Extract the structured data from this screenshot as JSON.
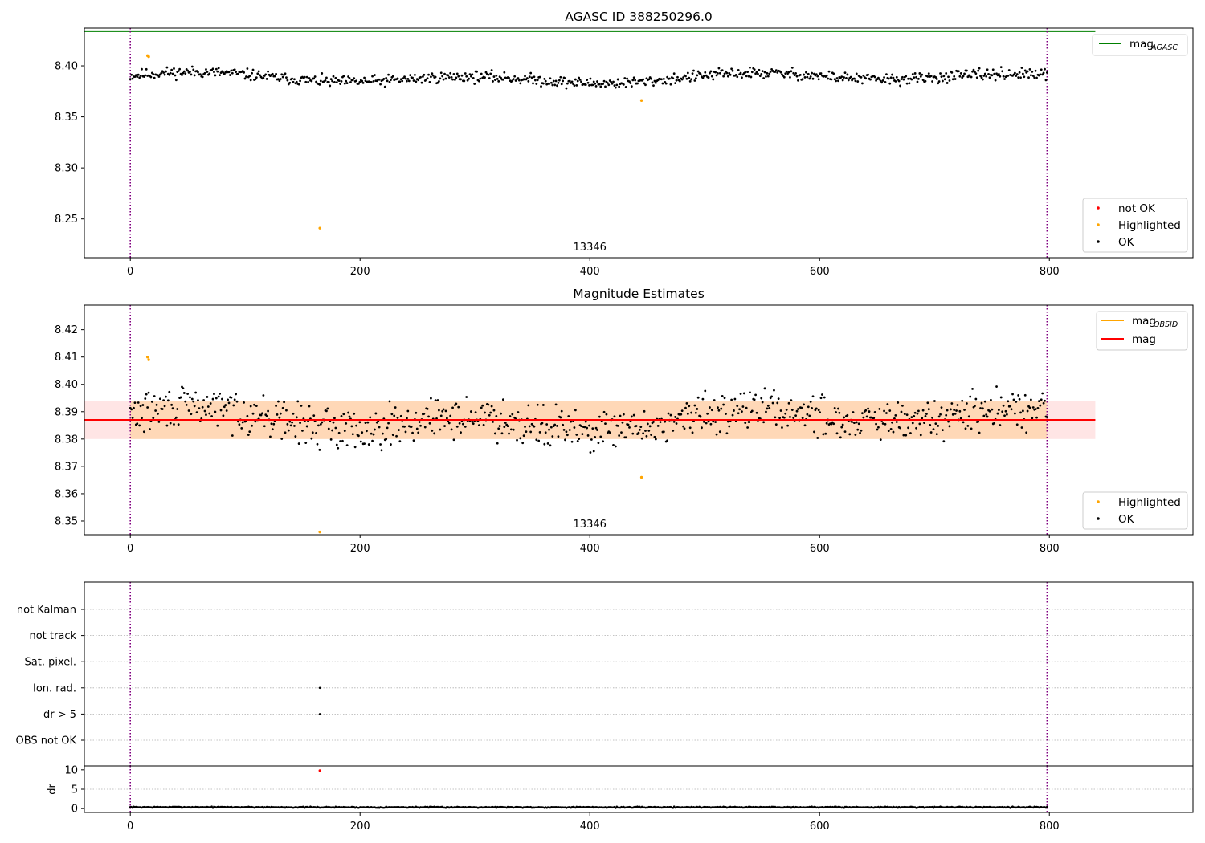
{
  "chart_data": [
    {
      "type": "scatter",
      "title": "AGASC ID 388250296.0",
      "xlim": [
        -40,
        925
      ],
      "ylim": [
        8.212,
        8.437
      ],
      "xticks": [
        0,
        200,
        400,
        600,
        800
      ],
      "yticks": [
        8.25,
        8.3,
        8.35,
        8.4
      ],
      "ytick_labels": [
        "8.25",
        "8.30",
        "8.35",
        "8.40"
      ],
      "obsid_label": "13346",
      "obsid_label_x": 400,
      "vlines": [
        0,
        798
      ],
      "hline": {
        "name": "mag",
        "subscript": "AGASC",
        "value": 8.434,
        "xmax": 840,
        "color": "#008000"
      },
      "scatter_legend": {
        "placement": "lower-right",
        "entries": [
          {
            "label": "not OK",
            "color": "#ff0000"
          },
          {
            "label": "Highlighted",
            "color": "#ffa500"
          },
          {
            "label": "OK",
            "color": "#000000"
          }
        ]
      },
      "line_legend": {
        "placement": "upper-right"
      },
      "series": [
        {
          "name": "OK",
          "color": "#000000",
          "n": 800,
          "x_max": 798,
          "base": 8.388,
          "noise": 0.0045
        },
        {
          "name": "Highlighted",
          "color": "#ffa500",
          "points": [
            [
              15,
              8.41
            ],
            [
              16,
              8.409
            ],
            [
              165,
              8.241
            ],
            [
              445,
              8.366
            ]
          ]
        },
        {
          "name": "not OK",
          "color": "#ff0000",
          "points": []
        }
      ]
    },
    {
      "type": "scatter",
      "title": "Magnitude Estimates",
      "xlim": [
        -40,
        925
      ],
      "ylim": [
        8.345,
        8.429
      ],
      "xticks": [
        0,
        200,
        400,
        600,
        800
      ],
      "yticks": [
        8.35,
        8.36,
        8.37,
        8.38,
        8.39,
        8.4,
        8.41,
        8.42
      ],
      "ytick_labels": [
        "8.35",
        "8.36",
        "8.37",
        "8.38",
        "8.39",
        "8.40",
        "8.41",
        "8.42"
      ],
      "obsid_label": "13346",
      "obsid_label_x": 400,
      "vlines": [
        0,
        798
      ],
      "mag": {
        "name": "mag",
        "value": 8.387,
        "band": [
          8.38,
          8.394
        ],
        "band_xmin": -40,
        "band_xmax": 840,
        "color": "#ff0000"
      },
      "mag_obsid": {
        "name": "mag",
        "subscript": "OBSID",
        "value": 8.387,
        "band": [
          8.38,
          8.394
        ],
        "band_xmin": 0,
        "band_xmax": 798,
        "color": "#ffa500"
      },
      "scatter_legend": {
        "placement": "lower-right",
        "entries": [
          {
            "label": "Highlighted",
            "color": "#ffa500"
          },
          {
            "label": "OK",
            "color": "#000000"
          }
        ]
      },
      "line_legend": {
        "placement": "upper-right"
      },
      "series": [
        {
          "name": "OK",
          "color": "#000000",
          "n": 800,
          "x_max": 798,
          "base": 8.387,
          "noise": 0.006
        },
        {
          "name": "Highlighted",
          "color": "#ffa500",
          "points": [
            [
              15,
              8.41
            ],
            [
              16,
              8.409
            ],
            [
              165,
              8.346
            ],
            [
              445,
              8.366
            ]
          ]
        }
      ]
    },
    {
      "type": "scatter",
      "title": "",
      "xlim": [
        -40,
        925
      ],
      "categories": [
        "not Kalman",
        "not track",
        "Sat. pixel.",
        "Ion. rad.",
        "dr > 5",
        "OBS not OK"
      ],
      "flag_points": [
        {
          "category": "Ion. rad.",
          "x": 165
        },
        {
          "category": "dr > 5",
          "x": 165
        }
      ],
      "vlines": [
        0,
        798
      ]
    },
    {
      "type": "scatter",
      "title": "",
      "ylabel": "dr",
      "xlim": [
        -40,
        925
      ],
      "ylim": [
        -1,
        11
      ],
      "xticks": [
        0,
        200,
        400,
        600,
        800
      ],
      "yticks": [
        0,
        5,
        10
      ],
      "ytick_labels": [
        "0",
        "5",
        "10"
      ],
      "vlines": [
        0,
        798
      ],
      "threshold": 5,
      "series": [
        {
          "name": "dr",
          "color": "#000000",
          "n": 800,
          "x_max": 798,
          "base": 0.35,
          "noise": 0.12
        },
        {
          "name": "not OK",
          "color": "#ff0000",
          "points": [
            [
              165,
              9.8
            ]
          ]
        }
      ]
    }
  ]
}
